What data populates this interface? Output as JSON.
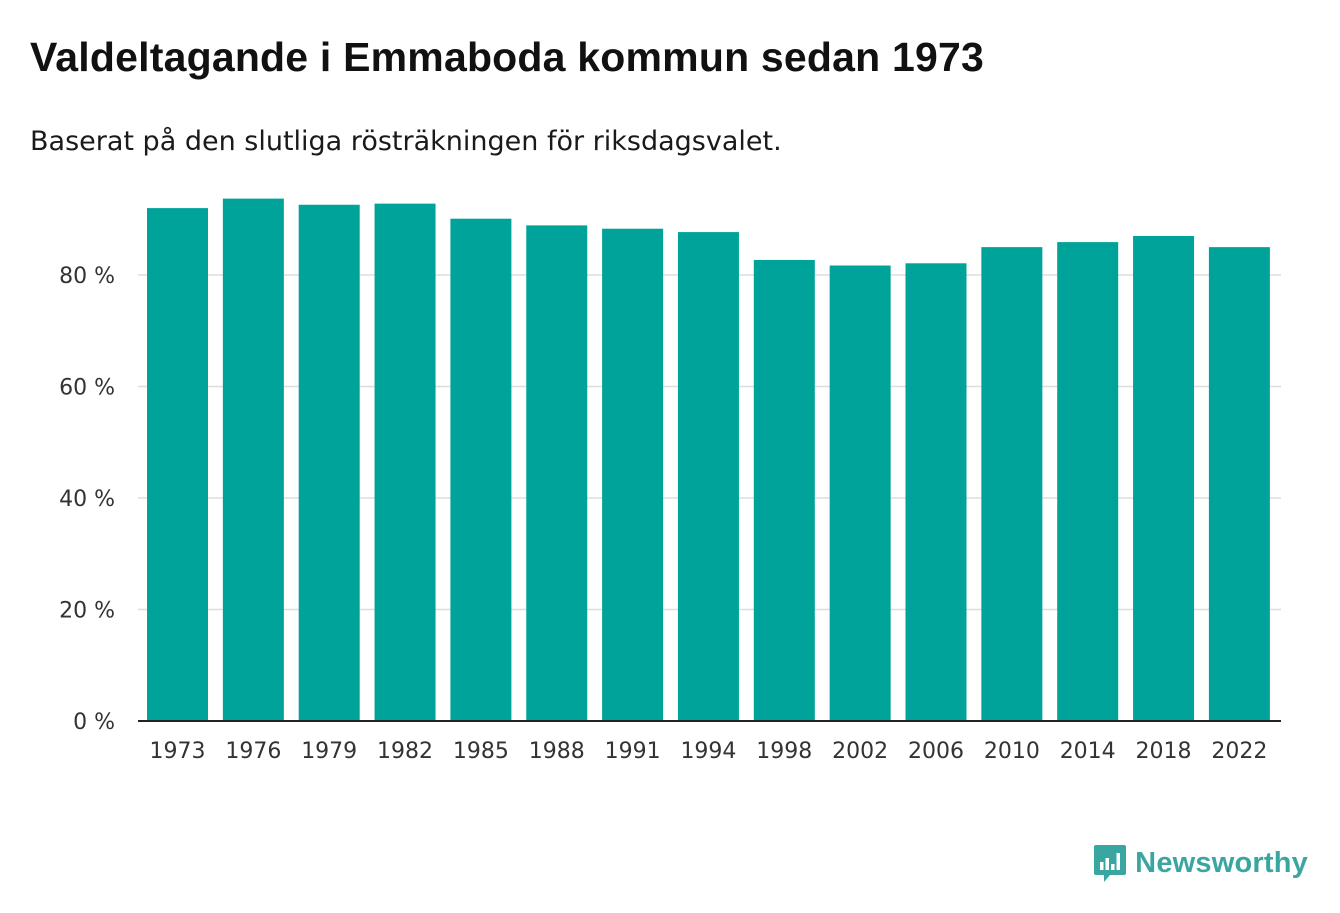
{
  "header": {
    "title": "Valdeltagande i Emmaboda kommun sedan 1973",
    "subtitle": "Baserat på den slutliga rösträkningen för riksdagsvalet."
  },
  "branding": {
    "name": "Newsworthy",
    "icon": "newsworthy-logo-icon",
    "color": "#3aa6a1"
  },
  "chart_data": {
    "type": "bar",
    "title": "Valdeltagande i Emmaboda kommun sedan 1973",
    "subtitle": "Baserat på den slutliga rösträkningen för riksdagsvalet.",
    "xlabel": "",
    "ylabel": "",
    "categories": [
      "1973",
      "1976",
      "1979",
      "1982",
      "1985",
      "1988",
      "1991",
      "1994",
      "1998",
      "2002",
      "2006",
      "2010",
      "2014",
      "2018",
      "2022"
    ],
    "values": [
      92.0,
      93.7,
      92.6,
      92.8,
      90.1,
      88.9,
      88.3,
      87.7,
      82.7,
      81.7,
      82.1,
      85.0,
      85.9,
      87.0,
      85.0
    ],
    "ylim": [
      0,
      100
    ],
    "yticks": [
      0,
      20,
      40,
      60,
      80
    ],
    "ytick_labels": [
      "0 %",
      "20 %",
      "40 %",
      "60 %",
      "80 %"
    ],
    "grid": true,
    "bar_color": "#00a39a",
    "grid_color": "#dddddd",
    "axis_color": "#222222",
    "legend": "none"
  }
}
